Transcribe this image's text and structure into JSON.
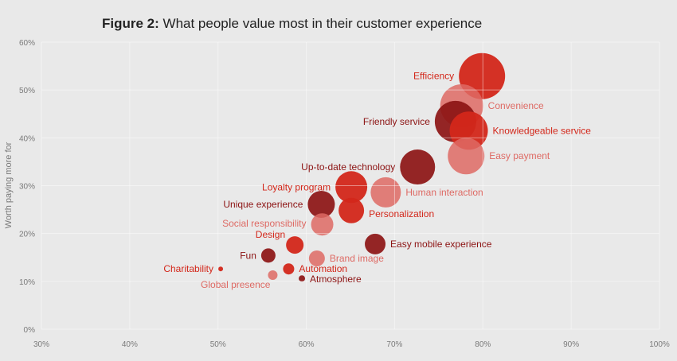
{
  "title": {
    "prefix": "Figure 2:",
    "text": "What people value most in their customer experience"
  },
  "chart_data": {
    "type": "scatter",
    "subtype": "bubble",
    "title": "Figure 2: What people value most in their customer experience",
    "xlabel": "",
    "ylabel": "Worth paying more for",
    "xlim": [
      30,
      100
    ],
    "ylim": [
      0,
      60
    ],
    "x_ticks": [
      "30%",
      "40%",
      "50%",
      "60%",
      "70%",
      "80%",
      "90%",
      "100%"
    ],
    "y_ticks": [
      "0%",
      "10%",
      "20%",
      "30%",
      "40%",
      "50%",
      "60%"
    ],
    "grid": true,
    "colors": {
      "bright": "#d3271a",
      "dark": "#8c1313",
      "light": "#de6a64"
    },
    "points": [
      {
        "label": "Efficiency",
        "x": 79.9,
        "y": 52.9,
        "size": 29,
        "tone": "bright",
        "label_position": "left"
      },
      {
        "label": "Convenience",
        "x": 77.6,
        "y": 46.7,
        "size": 27,
        "tone": "light",
        "label_position": "right"
      },
      {
        "label": "Friendly service",
        "x": 76.9,
        "y": 43.4,
        "size": 26,
        "tone": "dark",
        "label_position": "left"
      },
      {
        "label": "Knowledgeable service",
        "x": 78.4,
        "y": 41.5,
        "size": 24,
        "tone": "bright",
        "label_position": "right"
      },
      {
        "label": "Easy payment",
        "x": 78.1,
        "y": 36.2,
        "size": 23,
        "tone": "light",
        "label_position": "right"
      },
      {
        "label": "Up-to-date technology",
        "x": 72.6,
        "y": 33.9,
        "size": 22,
        "tone": "dark",
        "label_position": "left"
      },
      {
        "label": "Loyalty program",
        "x": 65.1,
        "y": 29.7,
        "size": 20,
        "tone": "bright",
        "label_position": "left"
      },
      {
        "label": "Human interaction",
        "x": 69.0,
        "y": 28.6,
        "size": 19,
        "tone": "light",
        "label_position": "right"
      },
      {
        "label": "Unique experience",
        "x": 61.7,
        "y": 26.1,
        "size": 17,
        "tone": "dark",
        "label_position": "left"
      },
      {
        "label": "Personalization",
        "x": 65.1,
        "y": 24.8,
        "size": 16,
        "tone": "bright",
        "label_position": "right"
      },
      {
        "label": "Social responsibility",
        "x": 61.8,
        "y": 21.9,
        "size": 14,
        "tone": "light",
        "label_position": "left"
      },
      {
        "label": "Design",
        "x": 58.7,
        "y": 17.6,
        "size": 11,
        "tone": "bright",
        "label_position": "left"
      },
      {
        "label": "Easy mobile experience",
        "x": 67.8,
        "y": 17.8,
        "size": 13,
        "tone": "dark",
        "label_position": "right"
      },
      {
        "label": "Fun",
        "x": 55.7,
        "y": 15.4,
        "size": 9,
        "tone": "dark",
        "label_position": "left"
      },
      {
        "label": "Brand image",
        "x": 61.2,
        "y": 14.8,
        "size": 10,
        "tone": "light",
        "label_position": "right"
      },
      {
        "label": "Charitability",
        "x": 50.3,
        "y": 12.6,
        "size": 3,
        "tone": "bright",
        "label_position": "left"
      },
      {
        "label": "Automation",
        "x": 58.0,
        "y": 12.6,
        "size": 7,
        "tone": "bright",
        "label_position": "right"
      },
      {
        "label": "Global presence",
        "x": 56.2,
        "y": 11.3,
        "size": 6,
        "tone": "light",
        "label_position": "left"
      },
      {
        "label": "Atmosphere",
        "x": 59.5,
        "y": 10.6,
        "size": 4,
        "tone": "dark",
        "label_position": "right"
      }
    ]
  }
}
